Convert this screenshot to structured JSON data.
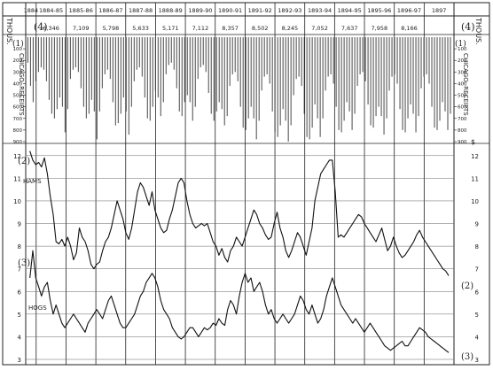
{
  "chart_data": {
    "type": "line",
    "top_label": "THOUS.",
    "top_marker_left": "(4)",
    "top_marker_right": "(4)",
    "panel_marker_left": "(1)",
    "panel_marker_right": "(1)",
    "panel_label": "CHICAGO, RECEIPTS",
    "years": [
      "1884",
      "1884-85",
      "1885-86",
      "1886-87",
      "1887-88",
      "1888-89",
      "1889-90",
      "1890-91",
      "1891-92",
      "1892-93",
      "1893-94",
      "1894-95",
      "1895-96",
      "1896-97",
      "1897"
    ],
    "annual_totals": [
      "6,346",
      "7,109",
      "5,798",
      "5,633",
      "5,171",
      "7,112",
      "8,357",
      "8,502",
      "8,245",
      "7,052",
      "7,637",
      "7,958",
      "8,166"
    ],
    "receipts_axis": {
      "ticks": [
        "100",
        "200",
        "300",
        "400",
        "500",
        "600",
        "700",
        "800",
        "900"
      ],
      "min": 0,
      "max": 900
    },
    "receipts_monthly_thousands": [
      220,
      420,
      560,
      380,
      300,
      260,
      280,
      380,
      540,
      660,
      700,
      620,
      520,
      600,
      820,
      620,
      360,
      280,
      260,
      300,
      440,
      600,
      700,
      660,
      540,
      640,
      880,
      640,
      440,
      320,
      280,
      360,
      560,
      760,
      740,
      660,
      520,
      640,
      840,
      600,
      380,
      280,
      260,
      340,
      520,
      700,
      720,
      600,
      460,
      520,
      680,
      560,
      320,
      240,
      220,
      280,
      440,
      640,
      680,
      560,
      500,
      560,
      720,
      600,
      360,
      260,
      240,
      300,
      480,
      660,
      720,
      640,
      560,
      620,
      760,
      680,
      420,
      320,
      300,
      380,
      600,
      780,
      800,
      700,
      600,
      700,
      880,
      720,
      460,
      340,
      320,
      400,
      640,
      820,
      860,
      760,
      620,
      720,
      900,
      760,
      500,
      360,
      340,
      420,
      660,
      860,
      880,
      780,
      580,
      700,
      860,
      700,
      460,
      340,
      320,
      400,
      600,
      800,
      820,
      720,
      560,
      640,
      800,
      660,
      420,
      320,
      300,
      380,
      580,
      760,
      780,
      680,
      600,
      680,
      840,
      700,
      460,
      340,
      320,
      400,
      620,
      800,
      820,
      700,
      580,
      660,
      820,
      680,
      440,
      340,
      320,
      400,
      600,
      780,
      800,
      720,
      560,
      640,
      800,
      660
    ],
    "price_axis": {
      "ticks": [
        "3",
        "4",
        "5",
        "6",
        "7",
        "8",
        "9",
        "10",
        "11",
        "12"
      ],
      "min": 3,
      "max": 12.5,
      "unit_label": "$"
    },
    "series": [
      {
        "name": "HAMS",
        "marker_left": "(2)",
        "marker_right": "(2)",
        "values": [
          12.2,
          11.8,
          11.6,
          11.7,
          11.5,
          11.9,
          11.2,
          10.2,
          9.4,
          8.2,
          8.1,
          8.3,
          8.0,
          8.4,
          8.0,
          7.4,
          7.7,
          8.8,
          8.4,
          8.2,
          7.8,
          7.2,
          7.0,
          7.2,
          7.3,
          7.8,
          8.2,
          8.4,
          8.8,
          9.4,
          10.0,
          9.6,
          9.2,
          8.6,
          8.3,
          8.8,
          9.6,
          10.4,
          10.8,
          10.6,
          10.2,
          9.8,
          10.4,
          9.6,
          9.2,
          8.8,
          8.6,
          8.7,
          9.2,
          9.6,
          10.2,
          10.8,
          11.0,
          10.8,
          10.0,
          9.4,
          9.0,
          8.8,
          8.9,
          9.0,
          8.9,
          9.0,
          8.6,
          8.2,
          8.0,
          7.6,
          7.9,
          7.5,
          7.3,
          7.8,
          8.0,
          8.4,
          8.2,
          8.0,
          8.4,
          8.8,
          9.2,
          9.6,
          9.4,
          9.0,
          8.8,
          8.5,
          8.3,
          8.4,
          9.0,
          9.5,
          8.8,
          8.4,
          7.8,
          7.5,
          7.8,
          8.2,
          8.6,
          8.4,
          8.0,
          7.6,
          8.2,
          8.8,
          10.0,
          10.6,
          11.2,
          11.4,
          11.6,
          11.8,
          11.8,
          10.4,
          8.4,
          8.5,
          8.4,
          8.6,
          8.8,
          9.0,
          9.2,
          9.4,
          9.3,
          9.0,
          8.8,
          8.6,
          8.4,
          8.2,
          8.5,
          8.8,
          8.3,
          7.8,
          8.0,
          8.4,
          8.0,
          7.7,
          7.5,
          7.6,
          7.8,
          8.0,
          8.2,
          8.5,
          8.7,
          8.4,
          8.2,
          8.0,
          7.8,
          7.6,
          7.4,
          7.2,
          7.0,
          6.9,
          6.7
        ]
      },
      {
        "name": "HOGS",
        "marker_left": "(3)",
        "marker_right": "(3)",
        "values": [
          6.6,
          7.8,
          6.6,
          6.2,
          5.8,
          6.2,
          6.4,
          5.6,
          5.0,
          5.4,
          5.0,
          4.6,
          4.4,
          4.6,
          4.8,
          5.0,
          4.8,
          4.6,
          4.4,
          4.2,
          4.6,
          4.8,
          5.0,
          5.2,
          5.0,
          4.8,
          5.2,
          5.6,
          5.8,
          5.4,
          5.0,
          4.6,
          4.4,
          4.4,
          4.6,
          4.8,
          5.0,
          5.4,
          5.8,
          6.0,
          6.4,
          6.6,
          6.8,
          6.6,
          6.2,
          5.6,
          5.2,
          5.0,
          4.8,
          4.4,
          4.2,
          4.0,
          3.9,
          4.0,
          4.2,
          4.4,
          4.4,
          4.2,
          4.0,
          4.2,
          4.4,
          4.3,
          4.4,
          4.6,
          4.5,
          4.8,
          4.6,
          4.5,
          5.2,
          5.6,
          5.4,
          5.0,
          5.8,
          6.4,
          6.8,
          6.4,
          6.6,
          6.0,
          6.2,
          6.4,
          6.0,
          5.4,
          5.0,
          5.2,
          4.8,
          4.6,
          4.8,
          5.0,
          4.8,
          4.6,
          4.8,
          5.0,
          5.4,
          5.8,
          5.6,
          5.2,
          5.0,
          5.4,
          5.0,
          4.6,
          4.8,
          5.2,
          5.8,
          6.2,
          6.6,
          6.2,
          5.8,
          5.4,
          5.2,
          5.0,
          4.8,
          4.6,
          4.8,
          4.6,
          4.4,
          4.2,
          4.4,
          4.6,
          4.4,
          4.2,
          4.0,
          3.8,
          3.6,
          3.5,
          3.4,
          3.5,
          3.6,
          3.7,
          3.8,
          3.6,
          3.6,
          3.8,
          4.0,
          4.2,
          4.4,
          4.3,
          4.2,
          4.0,
          3.9,
          3.8,
          3.7,
          3.6,
          3.5,
          3.4,
          3.3
        ]
      }
    ],
    "grid": true,
    "legend_placement": "inline labels at left"
  }
}
